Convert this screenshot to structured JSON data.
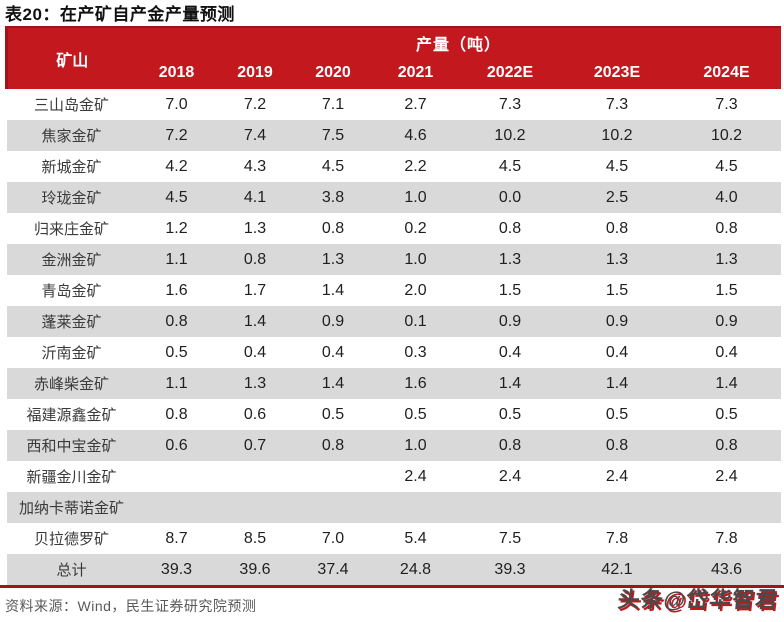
{
  "chart_data": {
    "type": "table",
    "title": "表20：在产矿自产金产量预测",
    "group_header": "产量（吨）",
    "columns": [
      "矿山",
      "2018",
      "2019",
      "2020",
      "2021",
      "2022E",
      "2023E",
      "2024E"
    ],
    "rows": [
      [
        "三山岛金矿",
        "7.0",
        "7.2",
        "7.1",
        "2.7",
        "7.3",
        "7.3",
        "7.3"
      ],
      [
        "焦家金矿",
        "7.2",
        "7.4",
        "7.5",
        "4.6",
        "10.2",
        "10.2",
        "10.2"
      ],
      [
        "新城金矿",
        "4.2",
        "4.3",
        "4.5",
        "2.2",
        "4.5",
        "4.5",
        "4.5"
      ],
      [
        "玲珑金矿",
        "4.5",
        "4.1",
        "3.8",
        "1.0",
        "0.0",
        "2.5",
        "4.0"
      ],
      [
        "归来庄金矿",
        "1.2",
        "1.3",
        "0.8",
        "0.2",
        "0.8",
        "0.8",
        "0.8"
      ],
      [
        "金洲金矿",
        "1.1",
        "0.8",
        "1.3",
        "1.0",
        "1.3",
        "1.3",
        "1.3"
      ],
      [
        "青岛金矿",
        "1.6",
        "1.7",
        "1.4",
        "2.0",
        "1.5",
        "1.5",
        "1.5"
      ],
      [
        "蓬莱金矿",
        "0.8",
        "1.4",
        "0.9",
        "0.1",
        "0.9",
        "0.9",
        "0.9"
      ],
      [
        "沂南金矿",
        "0.5",
        "0.4",
        "0.4",
        "0.3",
        "0.4",
        "0.4",
        "0.4"
      ],
      [
        "赤峰柴金矿",
        "1.1",
        "1.3",
        "1.4",
        "1.6",
        "1.4",
        "1.4",
        "1.4"
      ],
      [
        "福建源鑫金矿",
        "0.8",
        "0.6",
        "0.5",
        "0.5",
        "0.5",
        "0.5",
        "0.5"
      ],
      [
        "西和中宝金矿",
        "0.6",
        "0.7",
        "0.8",
        "1.0",
        "0.8",
        "0.8",
        "0.8"
      ],
      [
        "新疆金川金矿",
        "",
        "",
        "",
        "2.4",
        "2.4",
        "2.4",
        "2.4"
      ],
      [
        "加纳卡蒂诺金矿",
        "",
        "",
        "",
        "",
        "",
        "",
        ""
      ],
      [
        "贝拉德罗矿",
        "8.7",
        "8.5",
        "7.0",
        "5.4",
        "7.5",
        "7.8",
        "7.8"
      ],
      [
        "总计",
        "39.3",
        "39.6",
        "37.4",
        "24.8",
        "39.3",
        "42.1",
        "43.6"
      ]
    ]
  },
  "footer": {
    "source": "资料来源：Wind，民生证券研究院预测"
  },
  "watermark": "头条@岱华智君",
  "colors": {
    "header_red": "#C2181E",
    "divider_red": "#9E151C",
    "stripe_gray": "#D9D9D9",
    "title_black": "#111111",
    "value_text": "#1F1F1F",
    "name_text": "#3A3A3A",
    "source_gray": "#595959",
    "watermark_gray": "#4A4A4A"
  }
}
